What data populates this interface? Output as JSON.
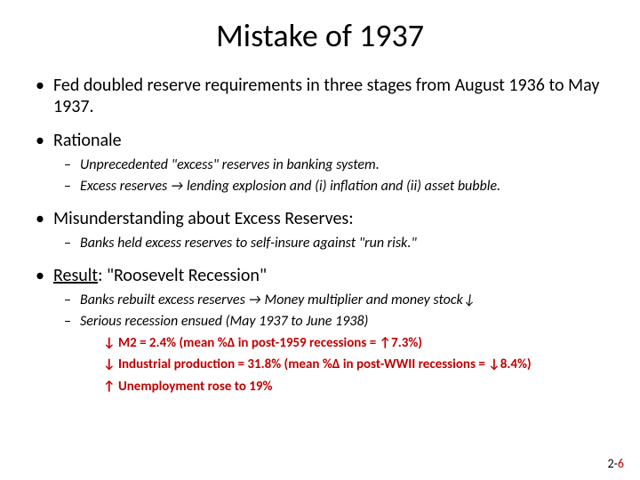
{
  "title": "Mistake of 1937",
  "bullets": {
    "b1": "Fed doubled reserve requirements in three stages from August 1936 to May 1937.",
    "b2": "Rationale",
    "b2_s1": "Unprecedented \"excess\" reserves in banking system.",
    "b2_s2": "Excess reserves → lending explosion and (i) inflation and (ii) asset bubble.",
    "b3": "Misunderstanding about Excess Reserves:",
    "b3_s1": "Banks held excess reserves to self-insure against \"run risk.\"",
    "b4_label": "Result",
    "b4_rest": ": \"Roosevelt Recession\"",
    "b4_s1": "Banks rebuilt excess reserves → Money multiplier and money stock↓",
    "b4_s2": "Serious recession ensued (May 1937 to June 1938)",
    "stat1": "↓ M2 = 2.4%  (mean %Δ in post-1959 recessions =  ↑7.3%)",
    "stat2": "↓ Industrial production = 31.8% (mean %Δ in post-WWII recessions = ↓8.4%)",
    "stat3": "↑ Unemployment rose to 19%"
  },
  "footer": {
    "prefix": "2-",
    "page_no": "6"
  },
  "colors": {
    "text": "#000000",
    "accent_red": "#c00000",
    "background": "#ffffff"
  }
}
